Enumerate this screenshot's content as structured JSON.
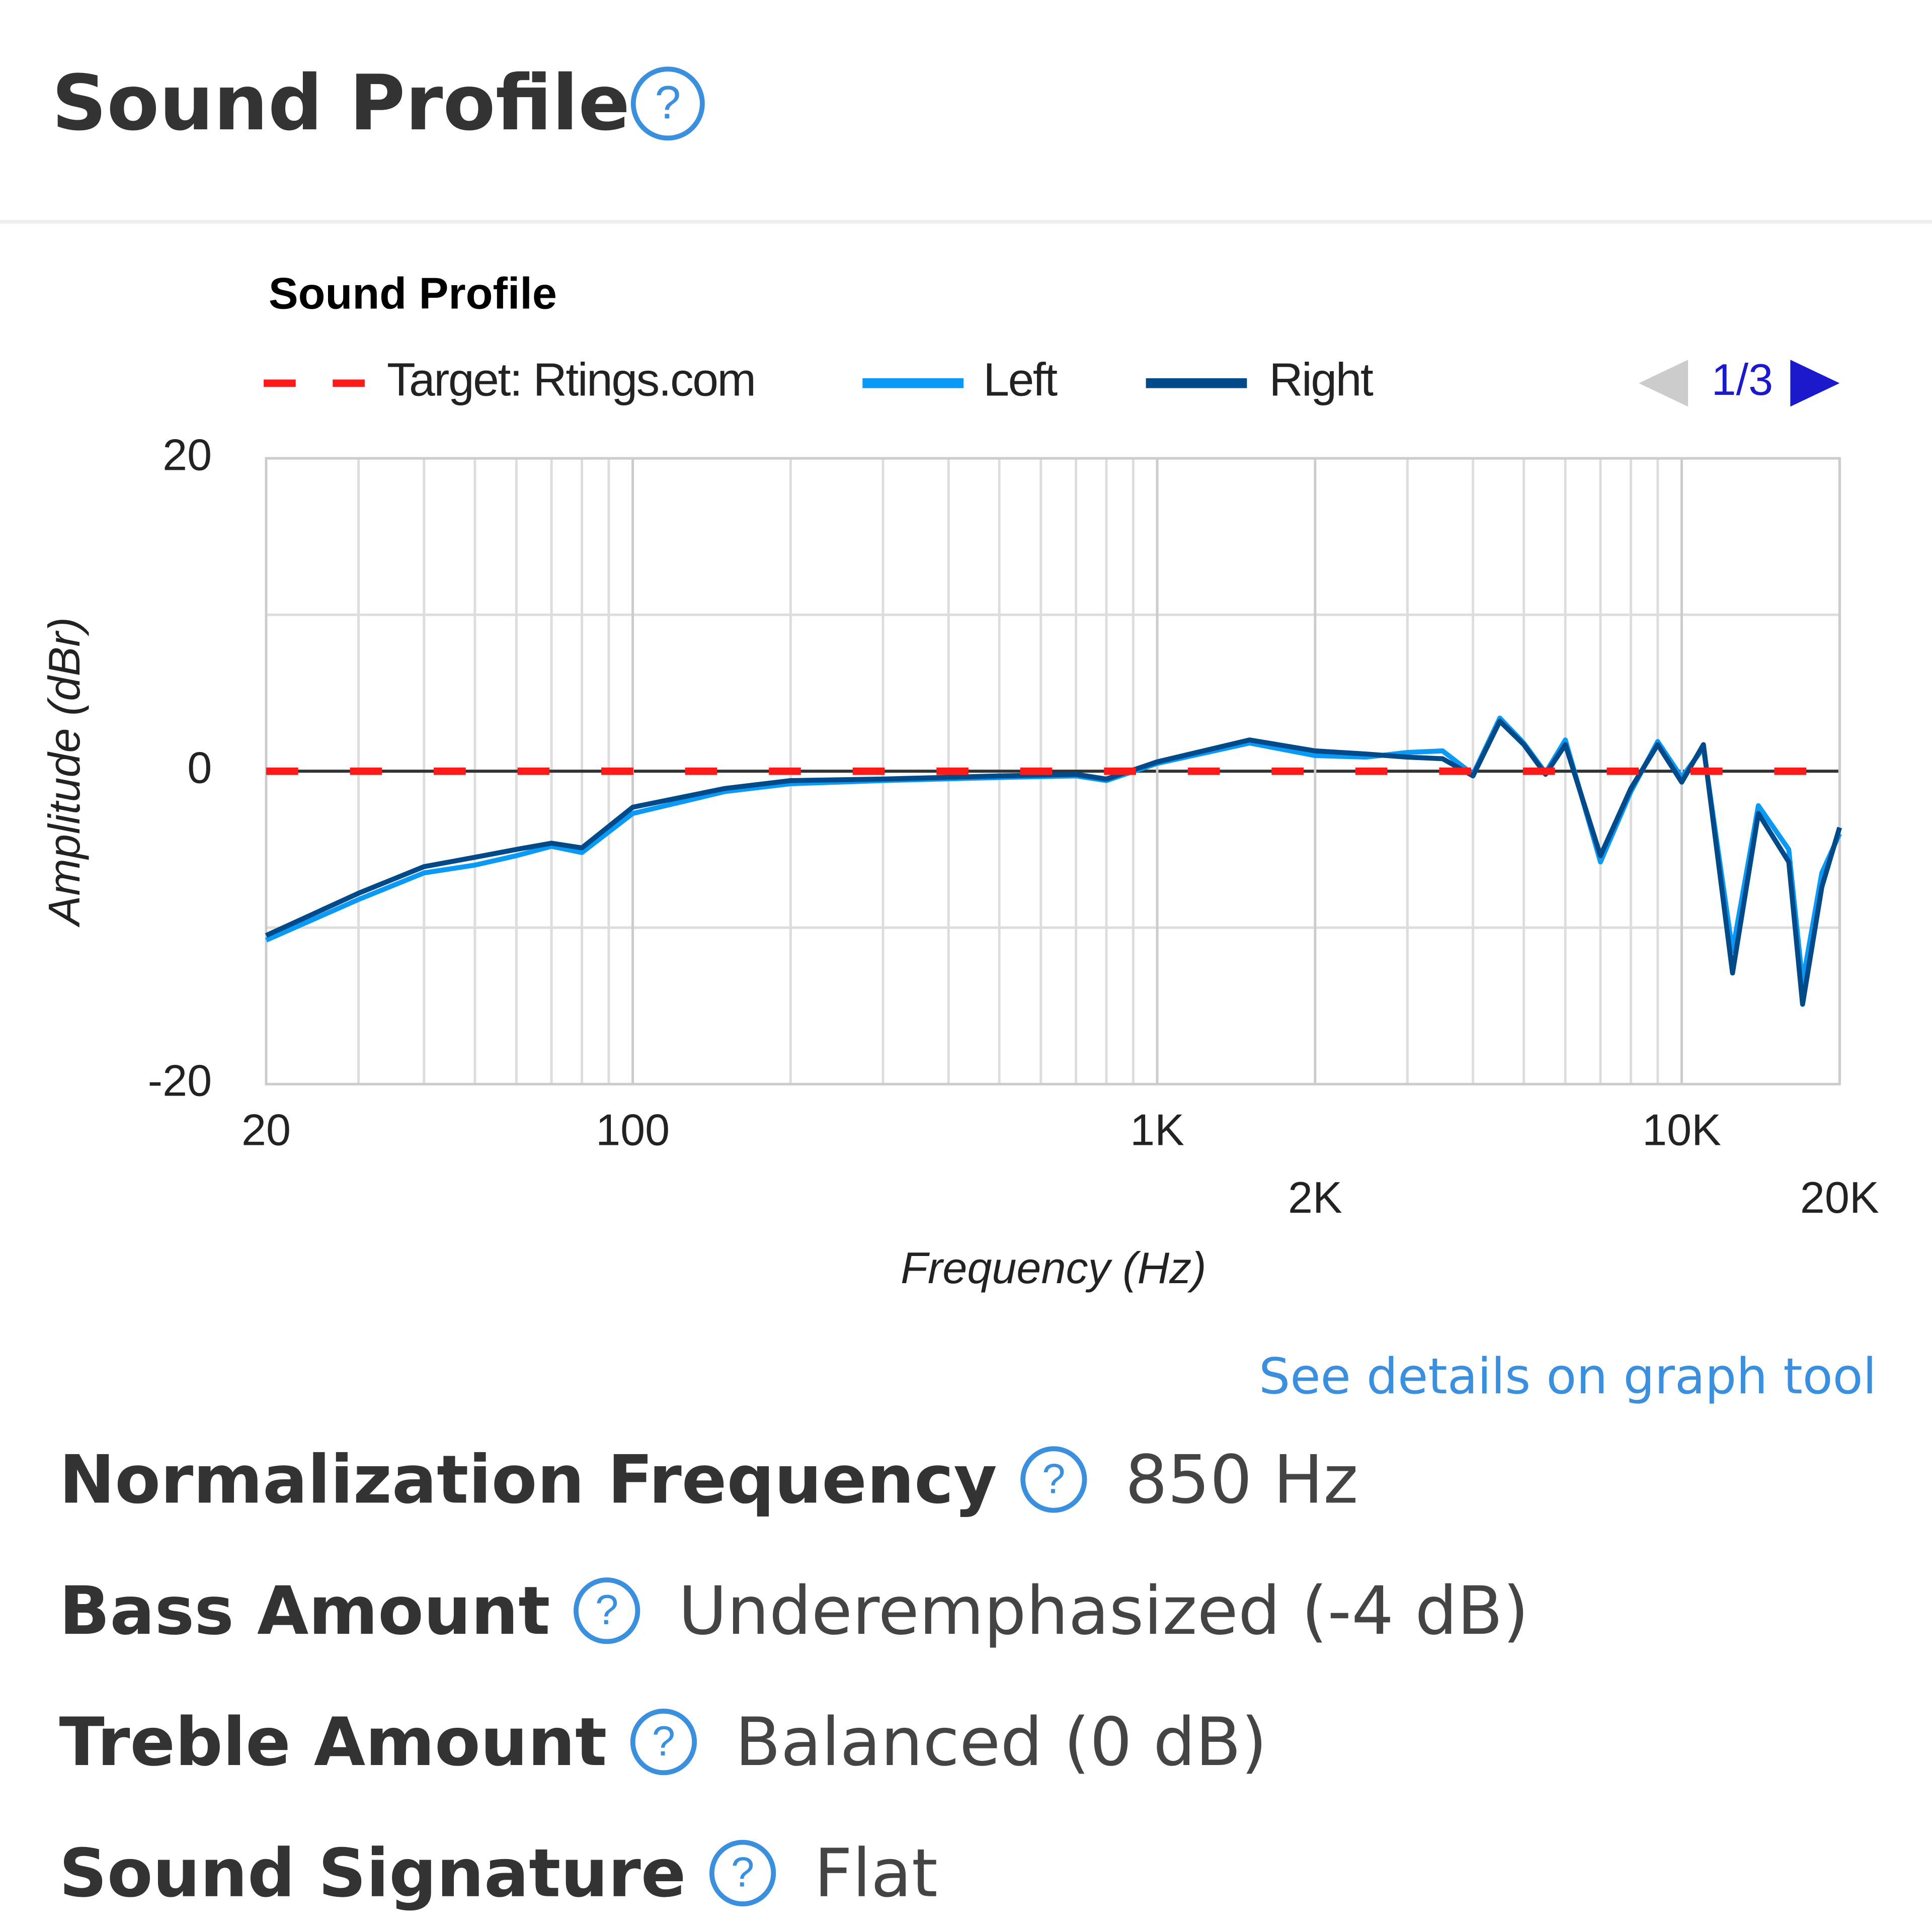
{
  "header": {
    "title": "Sound Profile"
  },
  "chart_data": {
    "type": "line",
    "title": "Sound Profile",
    "x_label": "Frequency (Hz)",
    "y_label": "Amplitude (dBr)",
    "xscale": "log",
    "grid": true,
    "xlim": [
      20,
      20000
    ],
    "ylim": [
      -20,
      20
    ],
    "xticks": [
      20,
      100,
      {
        "value": 1000,
        "label": "1K"
      },
      {
        "value": 2000,
        "label": "2K"
      },
      {
        "value": 10000,
        "label": "10K"
      },
      {
        "value": 20000,
        "label": "20K"
      }
    ],
    "yticks": [
      -20,
      0,
      20
    ],
    "x": [
      20,
      30,
      40,
      50,
      60,
      70,
      80,
      100,
      150,
      200,
      300,
      500,
      700,
      800,
      1000,
      1500,
      2000,
      2500,
      3000,
      3500,
      4000,
      4500,
      5000,
      5500,
      6000,
      7000,
      8000,
      9000,
      10000,
      11000,
      12500,
      14000,
      16000,
      17000,
      18500,
      20000
    ],
    "series": [
      {
        "name": "Target: Rtings.com",
        "color": "#ff1a1a",
        "dashed": true,
        "values": [
          0,
          0,
          0,
          0,
          0,
          0,
          0,
          0,
          0,
          0,
          0,
          0,
          0,
          0,
          0,
          0,
          0,
          0,
          0,
          0,
          0,
          0,
          0,
          0,
          0,
          0,
          0,
          0,
          0,
          0,
          0,
          0,
          0,
          0,
          0,
          0
        ]
      },
      {
        "name": "Left",
        "color": "#0a9af5",
        "values": [
          -10.8,
          -8.2,
          -6.5,
          -6.0,
          -5.4,
          -4.8,
          -5.2,
          -2.7,
          -1.3,
          -0.8,
          -0.6,
          -0.4,
          -0.3,
          -0.6,
          0.5,
          1.8,
          1.0,
          0.9,
          1.2,
          1.3,
          -0.2,
          3.4,
          1.8,
          -0.1,
          2.0,
          -5.8,
          -1.3,
          1.9,
          -0.4,
          1.5,
          -11.5,
          -2.2,
          -5.0,
          -13.5,
          -6.5,
          -4.0
        ]
      },
      {
        "name": "Right",
        "color": "#004a8a",
        "values": [
          -10.5,
          -7.8,
          -6.1,
          -5.5,
          -5.0,
          -4.6,
          -4.9,
          -2.3,
          -1.1,
          -0.6,
          -0.5,
          -0.3,
          -0.2,
          -0.5,
          0.6,
          2.0,
          1.3,
          1.1,
          0.9,
          0.8,
          -0.3,
          3.2,
          1.7,
          -0.2,
          1.7,
          -5.4,
          -1.1,
          1.7,
          -0.7,
          1.7,
          -12.9,
          -2.7,
          -5.8,
          -14.9,
          -7.4,
          -3.6
        ]
      }
    ]
  },
  "pager": "1/3",
  "link": "See details on graph tool",
  "properties": [
    {
      "label": "Normalization Frequency",
      "value": "850 Hz"
    },
    {
      "label": "Bass Amount",
      "value": "Underemphasized (-4 dB)"
    },
    {
      "label": "Treble Amount",
      "value": "Balanced (0 dB)"
    },
    {
      "label": "Sound Signature",
      "value": "Flat"
    }
  ]
}
